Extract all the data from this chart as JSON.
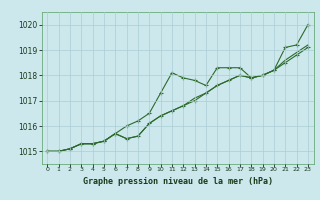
{
  "x": [
    0,
    1,
    2,
    3,
    4,
    5,
    6,
    7,
    8,
    9,
    10,
    11,
    12,
    13,
    14,
    15,
    16,
    17,
    18,
    19,
    20,
    21,
    22,
    23
  ],
  "line1": [
    1015.0,
    1015.0,
    1015.1,
    1015.3,
    1015.3,
    1015.4,
    1015.7,
    1016.0,
    1016.2,
    1016.5,
    1017.3,
    1018.1,
    1017.9,
    1017.8,
    1017.6,
    1018.3,
    1018.3,
    1018.3,
    1017.9,
    1018.0,
    1018.2,
    1019.1,
    1019.2,
    1020.0
  ],
  "line2": [
    1015.0,
    1015.0,
    1015.1,
    1015.3,
    1015.3,
    1015.4,
    1015.7,
    1015.5,
    1015.6,
    1016.1,
    1016.4,
    1016.6,
    1016.8,
    1017.0,
    1017.3,
    1017.6,
    1017.8,
    1018.0,
    1017.9,
    1018.0,
    1018.2,
    1018.5,
    1018.8,
    1019.1
  ],
  "line3": [
    1015.0,
    1015.0,
    1015.1,
    1015.3,
    1015.3,
    1015.4,
    1015.7,
    1015.5,
    1015.6,
    1016.1,
    1016.4,
    1016.6,
    1016.8,
    1017.1,
    1017.3,
    1017.6,
    1017.8,
    1018.0,
    1017.9,
    1018.0,
    1018.2,
    1018.6,
    1018.9,
    1019.2
  ],
  "bg_color": "#cce8ec",
  "grid_color": "#aacdd4",
  "line_color": "#2d6a2d",
  "axis_label_color": "#1a3a1a",
  "title": "Graphe pression niveau de la mer (hPa)",
  "ylim": [
    1014.5,
    1020.5
  ],
  "yticks": [
    1015,
    1016,
    1017,
    1018,
    1019,
    1020
  ],
  "xticks": [
    0,
    1,
    2,
    3,
    4,
    5,
    6,
    7,
    8,
    9,
    10,
    11,
    12,
    13,
    14,
    15,
    16,
    17,
    18,
    19,
    20,
    21,
    22,
    23
  ]
}
